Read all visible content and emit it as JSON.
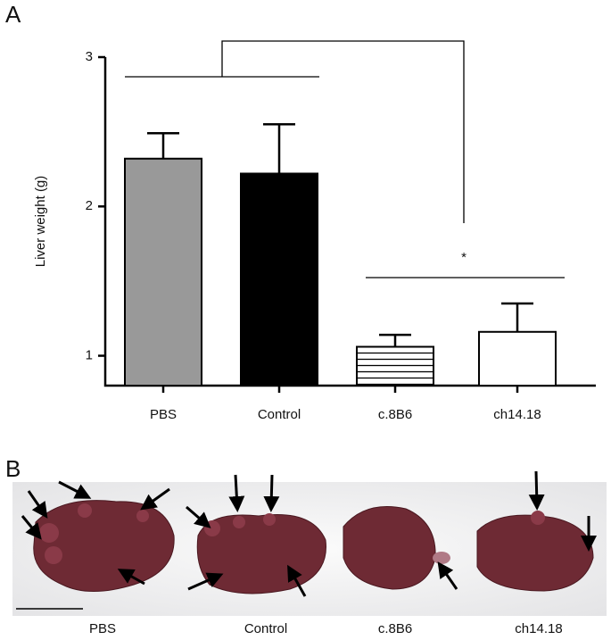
{
  "panel_labels": [
    "A",
    "B"
  ],
  "chart_data": {
    "type": "bar",
    "y_label": "Liver weight (g)",
    "annotation": "*",
    "categories": [
      "PBS",
      "Control",
      "c.8B6",
      "ch14.18"
    ],
    "values": [
      2.32,
      2.22,
      1.06,
      1.16
    ],
    "errors": [
      0.17,
      0.33,
      0.08,
      0.19
    ],
    "fills": [
      "#999999",
      "#000000",
      "horizontal-lines",
      "#ffffff"
    ],
    "ylim": [
      0.8,
      3
    ],
    "yticks": [
      1,
      2,
      3
    ]
  },
  "photos": {
    "labels": [
      "PBS",
      "Control",
      "c.8B6",
      "ch14.18"
    ]
  }
}
